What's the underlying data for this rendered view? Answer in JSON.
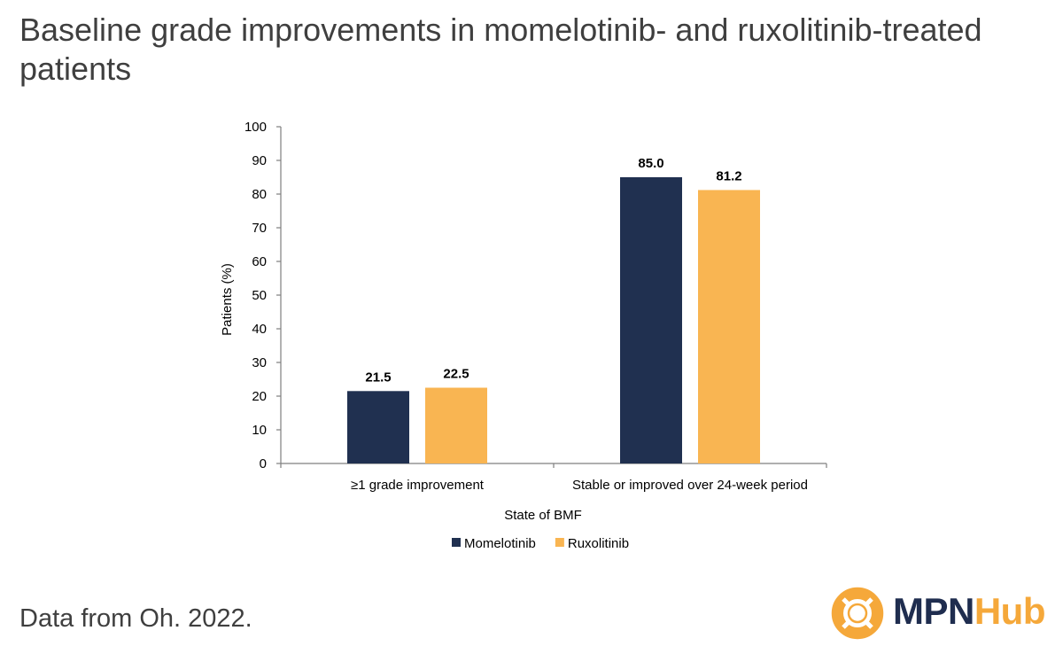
{
  "header": {
    "title": "Baseline grade improvements in momelotinib- and ruxolitinib-treated patients"
  },
  "footer": {
    "source": "Data from Oh. 2022."
  },
  "logo": {
    "part1": "MPN",
    "part2": "Hub"
  },
  "chart_data": {
    "type": "bar",
    "title": "",
    "xlabel": "State of BMF",
    "ylabel": "Patients (%)",
    "ylim": [
      0,
      100
    ],
    "yticks": [
      0,
      10,
      20,
      30,
      40,
      50,
      60,
      70,
      80,
      90,
      100
    ],
    "categories": [
      "≥1 grade improvement",
      "Stable or improved over 24-week period"
    ],
    "series": [
      {
        "name": "Momelotinib",
        "values": [
          21.5,
          85.0
        ],
        "labels": [
          "21.5",
          "85.0"
        ],
        "color": "#203050"
      },
      {
        "name": "Ruxolitinib",
        "values": [
          22.5,
          81.2
        ],
        "labels": [
          "22.5",
          "81.2"
        ],
        "color": "#f9b552"
      }
    ],
    "grid": false,
    "legend": "bottom"
  }
}
